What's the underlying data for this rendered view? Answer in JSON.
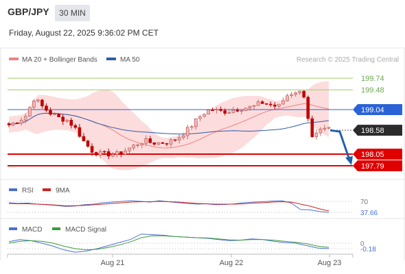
{
  "header": {
    "symbol": "GBP/JPY",
    "timeframe": "30 MIN",
    "datetime": "Friday, August 22, 2025 9:36:02 PM CET"
  },
  "legend": {
    "ma20_bb": "MA 20 + Bollinger Bands",
    "ma50": "MA 50",
    "credit": "Research © 2025 Trading Central"
  },
  "colors": {
    "ma20": "#f08080",
    "ma50": "#2f5aa8",
    "bollinger_fill": "#fcdcdc",
    "up_candle": "#f2b6b6",
    "down_candle": "#c00000",
    "resistance": "#9ccc65",
    "pivot": "#2a63d6",
    "support": "#e00000",
    "forecast_arrow": "#2060a8",
    "rsi": "#4a6fd0",
    "rsi_ma": "#d02020",
    "macd": "#4a6fd0",
    "macd_signal": "#3a9a3a"
  },
  "chart_data": [
    {
      "type": "candlestick",
      "title": "GBP/JPY 30 MIN",
      "ylim": [
        197.6,
        199.9
      ],
      "x_tick_labels": [
        "Aug 21",
        "Aug 22",
        "Aug 23"
      ],
      "series": [
        {
          "name": "MA 20 + Bollinger Bands"
        },
        {
          "name": "MA 50"
        }
      ],
      "levels": [
        {
          "label": "199.74",
          "value": 199.74,
          "kind": "resistance"
        },
        {
          "label": "199.48",
          "value": 199.48,
          "kind": "resistance"
        },
        {
          "label": "199.04",
          "value": 199.04,
          "kind": "pivot"
        },
        {
          "label": "198.58",
          "value": 198.58,
          "kind": "last"
        },
        {
          "label": "198.05",
          "value": 198.05,
          "kind": "support"
        },
        {
          "label": "197.79",
          "value": 197.79,
          "kind": "support"
        }
      ],
      "close_path": [
        198.7,
        198.78,
        198.9,
        199.3,
        199.1,
        198.95,
        198.85,
        198.8,
        198.6,
        198.3,
        198.1,
        198.05,
        198.05,
        198.05,
        198.15,
        198.25,
        198.35,
        198.3,
        198.3,
        198.32,
        198.4,
        198.55,
        198.75,
        198.95,
        199.05,
        199.0,
        199.0,
        199.05,
        199.08,
        199.1,
        199.2,
        199.15,
        199.1,
        199.35,
        199.45,
        199.4,
        198.4,
        198.55,
        198.6
      ]
    },
    {
      "type": "line",
      "title": "RSI",
      "ylim": [
        0,
        100
      ],
      "levels": [
        {
          "label": "70",
          "value": 70
        },
        {
          "label": "37.66",
          "value": 37.66
        }
      ],
      "series": [
        {
          "name": "RSI",
          "values": [
            66,
            64,
            65,
            62,
            60,
            58,
            55,
            56,
            60,
            62,
            66,
            68,
            70,
            72,
            70,
            68,
            72,
            69,
            66,
            64,
            62,
            63,
            60,
            61,
            63,
            66,
            68,
            69,
            71,
            72,
            65,
            46,
            45,
            40,
            37.66
          ]
        },
        {
          "name": "9MA",
          "values": [
            64,
            63,
            63,
            62,
            61,
            59,
            57,
            57,
            58,
            60,
            62,
            64,
            66,
            68,
            69,
            69,
            70,
            69,
            68,
            66,
            64,
            63,
            62,
            62,
            62,
            63,
            65,
            66,
            68,
            69,
            68,
            62,
            56,
            48,
            42
          ]
        }
      ]
    },
    {
      "type": "line",
      "title": "MACD",
      "levels": [
        {
          "label": "0",
          "value": 0
        },
        {
          "label": "-0.18",
          "value": -0.18
        }
      ],
      "series": [
        {
          "name": "MACD",
          "values": [
            0.05,
            0.12,
            0.08,
            0.0,
            -0.1,
            -0.22,
            -0.3,
            -0.26,
            -0.18,
            -0.08,
            0.02,
            0.12,
            0.3,
            0.28,
            0.26,
            0.22,
            0.2,
            0.18,
            0.16,
            0.12,
            0.08,
            0.1,
            0.14,
            0.12,
            0.06,
            0.02,
            0.0,
            -0.08,
            -0.16,
            -0.18
          ]
        },
        {
          "name": "MACD Signal",
          "values": [
            0.0,
            0.06,
            0.08,
            0.06,
            0.0,
            -0.1,
            -0.18,
            -0.22,
            -0.2,
            -0.14,
            -0.06,
            0.04,
            0.18,
            0.24,
            0.24,
            0.22,
            0.2,
            0.18,
            0.17,
            0.14,
            0.11,
            0.1,
            0.12,
            0.12,
            0.1,
            0.06,
            0.03,
            -0.02,
            -0.1,
            -0.14
          ]
        }
      ]
    }
  ]
}
